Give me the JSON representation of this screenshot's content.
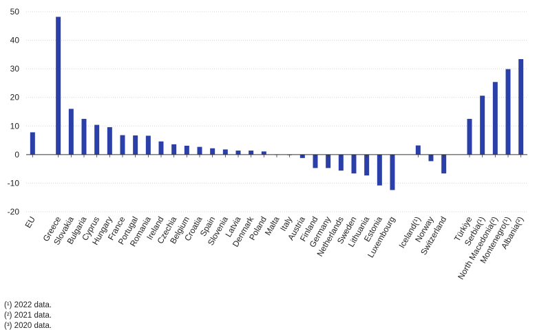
{
  "chart_data": {
    "type": "bar",
    "categories": [
      "EU",
      "Greece",
      "Slovakia",
      "Bulgaria",
      "Cyprus",
      "Hungary",
      "France",
      "Portugal",
      "Romania",
      "Ireland",
      "Czechia",
      "Belgium",
      "Croatia",
      "Spain",
      "Slovenia",
      "Latvia",
      "Denmark",
      "Poland",
      "Malta",
      "Italy",
      "Austria",
      "Finland",
      "Germany",
      "Netherlands",
      "Sweden",
      "Lithuania",
      "Estonia",
      "Luxembourg",
      "Iceland(¹)",
      "Norway",
      "Switzerland",
      "Türkiye",
      "Serbia(¹)",
      "North Macedonia(²)",
      "Montenegro(¹)",
      "Albania(²)"
    ],
    "group_gap_after": [
      0,
      27,
      30
    ],
    "values": [
      7.8,
      48.2,
      16.0,
      12.5,
      10.4,
      9.6,
      6.8,
      6.7,
      6.6,
      4.6,
      3.6,
      3.1,
      2.7,
      2.2,
      1.8,
      1.4,
      1.4,
      1.1,
      0.1,
      -0.1,
      -1.2,
      -4.7,
      -4.7,
      -5.6,
      -6.6,
      -7.3,
      -10.8,
      -12.4,
      3.2,
      -2.3,
      -6.6,
      12.5,
      20.6,
      25.4,
      29.9,
      33.4
    ],
    "ylim": [
      -20,
      50
    ],
    "yticks": [
      -20,
      -10,
      0,
      10,
      20,
      30,
      40,
      50
    ],
    "grid": true,
    "bar_color": "#2a3fa8"
  },
  "footnotes": [
    "(¹) 2022 data.",
    "(²) 2021 data.",
    "(³) 2020 data."
  ]
}
